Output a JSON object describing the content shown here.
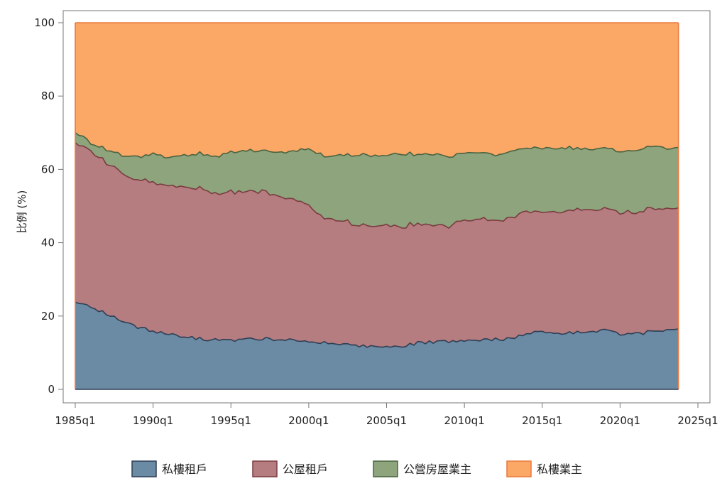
{
  "chart_data": {
    "type": "area",
    "stacked": true,
    "ylabel": "比例 (%)",
    "xlabel": "",
    "ylim": [
      0,
      100
    ],
    "yticks": [
      0,
      20,
      40,
      60,
      80,
      100
    ],
    "xticks": [
      "1985q1",
      "1990q1",
      "1995q1",
      "2000q1",
      "2005q1",
      "2010q1",
      "2015q1",
      "2020q1",
      "2025q1"
    ],
    "xrange": [
      "1985q1",
      "2025q1"
    ],
    "grid": false,
    "legend_position": "bottom",
    "x_keyframes": [
      "1985q1",
      "1986q1",
      "1987q1",
      "1988q1",
      "1989q1",
      "1990q1",
      "1991q1",
      "1992q1",
      "1993q1",
      "1994q1",
      "1995q1",
      "1996q1",
      "1997q1",
      "1998q1",
      "1999q1",
      "2000q1",
      "2001q1",
      "2002q1",
      "2003q1",
      "2004q1",
      "2005q1",
      "2006q1",
      "2007q1",
      "2008q1",
      "2009q1",
      "2010q1",
      "2011q1",
      "2012q1",
      "2013q1",
      "2014q1",
      "2015q1",
      "2016q1",
      "2017q1",
      "2018q1",
      "2019q1",
      "2020q1",
      "2021q1",
      "2022q1",
      "2023q1",
      "2023q4"
    ],
    "series": [
      {
        "name": "私樓租戶",
        "color": "#6b8aa3",
        "stroke": "#2e3f55",
        "values": [
          23.8,
          22.5,
          20.5,
          18.5,
          17.0,
          16.0,
          15.0,
          14.3,
          13.8,
          13.5,
          13.2,
          13.5,
          13.8,
          13.8,
          13.5,
          13.0,
          12.8,
          12.5,
          12.0,
          11.5,
          11.8,
          12.0,
          12.5,
          13.0,
          13.0,
          13.2,
          13.3,
          13.5,
          14.0,
          15.0,
          16.0,
          15.5,
          15.5,
          16.0,
          16.3,
          15.0,
          15.2,
          15.8,
          15.8,
          16.5
        ]
      },
      {
        "name": "公屋租戶",
        "color": "#b67d80",
        "stroke": "#7a3c40",
        "values": [
          43.5,
          42.5,
          41.5,
          40.5,
          40.0,
          40.5,
          40.5,
          41.0,
          41.0,
          40.0,
          40.5,
          40.5,
          40.5,
          39.0,
          38.0,
          37.5,
          34.0,
          33.5,
          33.0,
          32.5,
          33.0,
          33.0,
          32.5,
          32.0,
          31.5,
          33.0,
          33.0,
          32.5,
          33.0,
          33.5,
          32.5,
          33.0,
          33.5,
          33.0,
          33.0,
          33.5,
          33.0,
          33.5,
          33.5,
          33.0
        ]
      },
      {
        "name": "公營房屋業主",
        "color": "#8da47c",
        "stroke": "#4a6340",
        "values": [
          2.7,
          2.0,
          3.5,
          5.0,
          6.5,
          7.5,
          8.0,
          8.5,
          9.5,
          10.0,
          11.0,
          11.0,
          11.0,
          12.0,
          13.5,
          15.0,
          17.0,
          18.0,
          19.0,
          19.5,
          19.0,
          19.5,
          19.0,
          19.0,
          19.0,
          18.5,
          18.2,
          18.0,
          18.0,
          17.0,
          17.5,
          17.5,
          17.0,
          16.5,
          16.5,
          16.5,
          17.0,
          17.0,
          16.5,
          16.5
        ]
      },
      {
        "name": "私樓業主",
        "color": "#fba766",
        "stroke": "#ea7a3e",
        "values": [
          30.0,
          33.0,
          34.5,
          36.0,
          36.5,
          36.0,
          36.5,
          36.2,
          35.7,
          36.5,
          35.3,
          35.0,
          34.7,
          35.2,
          35.0,
          34.5,
          36.2,
          36.0,
          36.0,
          36.5,
          36.2,
          35.5,
          36.0,
          36.0,
          36.5,
          35.3,
          35.5,
          36.0,
          35.0,
          34.5,
          34.0,
          34.0,
          34.0,
          34.5,
          34.2,
          35.0,
          34.8,
          33.7,
          34.2,
          34.0
        ]
      }
    ]
  }
}
